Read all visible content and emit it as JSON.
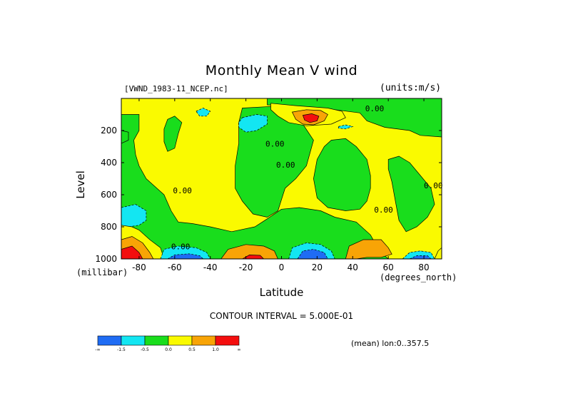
{
  "chart_data": {
    "type": "heatmap",
    "title": "Monthly Mean V wind",
    "file_label": "[VWND_1983-11_NCEP.nc]",
    "units_label": "(units:m/s)",
    "xlabel": "Latitude",
    "x_unit_label": "(degrees_north)",
    "ylabel": "Level",
    "y_unit_label": "(millibar)",
    "xlim": [
      -90,
      90
    ],
    "ylim": [
      1000,
      0
    ],
    "x_ticks": [
      "-80",
      "-60",
      "-40",
      "-20",
      "0",
      "20",
      "40",
      "60",
      "80"
    ],
    "x_tick_values": [
      -80,
      -60,
      -40,
      -20,
      0,
      20,
      40,
      60,
      80
    ],
    "y_ticks": [
      "200",
      "400",
      "600",
      "800",
      "1000"
    ],
    "y_tick_values": [
      200,
      400,
      600,
      800,
      1000
    ],
    "contour_interval_label": "CONTOUR INTERVAL = 5.000E-01",
    "mean_label": "(mean) lon:0..357.5",
    "contour_labels": [
      {
        "text": "0.00",
        "x": -62,
        "y": 940
      },
      {
        "text": "0.00",
        "x": -9,
        "y": 300
      },
      {
        "text": "0.00",
        "x": -3,
        "y": 430
      },
      {
        "text": "0.00",
        "x": -61,
        "y": 590
      },
      {
        "text": "0.00",
        "x": 52,
        "y": 710
      },
      {
        "text": "0.00",
        "x": 47,
        "y": 80
      },
      {
        "text": "0.00",
        "x": 80,
        "y": 560
      }
    ],
    "colorbar": {
      "colors": [
        "#1f6cf4",
        "#13e6f2",
        "#19dd1c",
        "#fafa00",
        "#f8a406",
        "#f40e0e"
      ],
      "labels": [
        "-∞",
        "-1.5",
        "-0.5",
        "0.0",
        "0.5",
        "1.0",
        "∞"
      ]
    },
    "regions": [
      {
        "level": 2,
        "points": [
          [
            -90,
            0
          ],
          [
            90,
            0
          ],
          [
            90,
            1000
          ],
          [
            -90,
            1000
          ]
        ]
      },
      {
        "level": 3,
        "points": [
          [
            -90,
            0
          ],
          [
            -8,
            0
          ],
          [
            -8,
            40
          ],
          [
            10,
            55
          ],
          [
            30,
            70
          ],
          [
            44,
            90
          ],
          [
            48,
            140
          ],
          [
            58,
            180
          ],
          [
            72,
            200
          ],
          [
            78,
            230
          ],
          [
            90,
            240
          ],
          [
            90,
            1000
          ],
          [
            60,
            1000
          ],
          [
            55,
            950
          ],
          [
            50,
            850
          ],
          [
            42,
            770
          ],
          [
            30,
            740
          ],
          [
            22,
            700
          ],
          [
            10,
            680
          ],
          [
            0,
            690
          ],
          [
            -8,
            750
          ],
          [
            -15,
            800
          ],
          [
            -28,
            830
          ],
          [
            -40,
            800
          ],
          [
            -50,
            780
          ],
          [
            -58,
            770
          ],
          [
            -62,
            700
          ],
          [
            -66,
            600
          ],
          [
            -72,
            540
          ],
          [
            -76,
            500
          ],
          [
            -80,
            420
          ],
          [
            -82,
            350
          ],
          [
            -83,
            260
          ],
          [
            -80,
            200
          ],
          [
            -80,
            100
          ],
          [
            -90,
            100
          ]
        ]
      },
      {
        "level": 2,
        "points": [
          [
            -22,
            60
          ],
          [
            -6,
            50
          ],
          [
            6,
            90
          ],
          [
            12,
            160
          ],
          [
            18,
            260
          ],
          [
            14,
            420
          ],
          [
            8,
            500
          ],
          [
            2,
            560
          ],
          [
            -2,
            700
          ],
          [
            -8,
            740
          ],
          [
            -16,
            720
          ],
          [
            -22,
            640
          ],
          [
            -26,
            560
          ],
          [
            -26,
            420
          ],
          [
            -24,
            280
          ],
          [
            -24,
            150
          ]
        ]
      },
      {
        "level": 2,
        "points": [
          [
            -64,
            130
          ],
          [
            -60,
            110
          ],
          [
            -56,
            150
          ],
          [
            -58,
            220
          ],
          [
            -60,
            310
          ],
          [
            -64,
            330
          ],
          [
            -66,
            270
          ],
          [
            -66,
            190
          ]
        ]
      },
      {
        "level": 2,
        "points": [
          [
            -90,
            200
          ],
          [
            -86,
            210
          ],
          [
            -86,
            260
          ],
          [
            -90,
            280
          ]
        ]
      },
      {
        "level": 2,
        "points": [
          [
            28,
            260
          ],
          [
            36,
            250
          ],
          [
            42,
            300
          ],
          [
            48,
            380
          ],
          [
            50,
            480
          ],
          [
            50,
            560
          ],
          [
            48,
            640
          ],
          [
            44,
            690
          ],
          [
            36,
            700
          ],
          [
            26,
            680
          ],
          [
            20,
            620
          ],
          [
            18,
            500
          ],
          [
            20,
            380
          ],
          [
            24,
            300
          ]
        ]
      },
      {
        "level": 2,
        "points": [
          [
            60,
            380
          ],
          [
            66,
            360
          ],
          [
            72,
            400
          ],
          [
            78,
            480
          ],
          [
            84,
            560
          ],
          [
            86,
            660
          ],
          [
            82,
            740
          ],
          [
            76,
            800
          ],
          [
            70,
            830
          ],
          [
            66,
            760
          ],
          [
            64,
            640
          ],
          [
            62,
            520
          ],
          [
            60,
            440
          ]
        ]
      },
      {
        "level": 3,
        "points": [
          [
            -6,
            30
          ],
          [
            8,
            45
          ],
          [
            26,
            60
          ],
          [
            34,
            80
          ],
          [
            36,
            120
          ],
          [
            28,
            160
          ],
          [
            14,
            170
          ],
          [
            4,
            150
          ],
          [
            -2,
            110
          ],
          [
            -6,
            70
          ]
        ]
      },
      {
        "level": 4,
        "points": [
          [
            6,
            85
          ],
          [
            14,
            70
          ],
          [
            22,
            75
          ],
          [
            26,
            100
          ],
          [
            24,
            140
          ],
          [
            18,
            165
          ],
          [
            12,
            160
          ],
          [
            8,
            130
          ]
        ]
      },
      {
        "level": 5,
        "points": [
          [
            12,
            105
          ],
          [
            17,
            95
          ],
          [
            21,
            110
          ],
          [
            20,
            140
          ],
          [
            16,
            150
          ],
          [
            13,
            135
          ]
        ]
      },
      {
        "level": 1,
        "points": [
          [
            -48,
            80
          ],
          [
            -44,
            60
          ],
          [
            -40,
            80
          ],
          [
            -42,
            110
          ],
          [
            -46,
            110
          ]
        ]
      },
      {
        "level": 1,
        "points": [
          [
            -22,
            120
          ],
          [
            -14,
            100
          ],
          [
            -8,
            110
          ],
          [
            -8,
            160
          ],
          [
            -14,
            200
          ],
          [
            -20,
            210
          ],
          [
            -24,
            180
          ],
          [
            -24,
            150
          ]
        ]
      },
      {
        "level": 1,
        "points": [
          [
            32,
            175
          ],
          [
            36,
            165
          ],
          [
            40,
            175
          ],
          [
            36,
            190
          ],
          [
            32,
            185
          ]
        ]
      },
      {
        "level": 1,
        "points": [
          [
            -90,
            680
          ],
          [
            -82,
            660
          ],
          [
            -76,
            700
          ],
          [
            -76,
            760
          ],
          [
            -80,
            790
          ],
          [
            -86,
            800
          ],
          [
            -90,
            790
          ]
        ]
      },
      {
        "level": 3,
        "points": [
          [
            -90,
            790
          ],
          [
            -84,
            800
          ],
          [
            -80,
            820
          ],
          [
            -74,
            880
          ],
          [
            -68,
            930
          ],
          [
            -66,
            1000
          ],
          [
            -90,
            1000
          ]
        ]
      },
      {
        "level": 4,
        "points": [
          [
            -90,
            880
          ],
          [
            -84,
            860
          ],
          [
            -78,
            900
          ],
          [
            -74,
            960
          ],
          [
            -72,
            1000
          ],
          [
            -90,
            1000
          ]
        ]
      },
      {
        "level": 5,
        "points": [
          [
            -90,
            940
          ],
          [
            -84,
            920
          ],
          [
            -80,
            960
          ],
          [
            -78,
            1000
          ],
          [
            -90,
            1000
          ]
        ]
      },
      {
        "level": 1,
        "points": [
          [
            -68,
            1000
          ],
          [
            -66,
            940
          ],
          [
            -58,
            920
          ],
          [
            -48,
            930
          ],
          [
            -42,
            960
          ],
          [
            -40,
            1000
          ]
        ]
      },
      {
        "level": 0,
        "points": [
          [
            -64,
            1000
          ],
          [
            -60,
            975
          ],
          [
            -52,
            968
          ],
          [
            -46,
            980
          ],
          [
            -44,
            1000
          ]
        ]
      },
      {
        "level": 4,
        "points": [
          [
            -34,
            1000
          ],
          [
            -30,
            940
          ],
          [
            -20,
            910
          ],
          [
            -10,
            920
          ],
          [
            -4,
            950
          ],
          [
            -2,
            1000
          ]
        ]
      },
      {
        "level": 5,
        "points": [
          [
            -22,
            1000
          ],
          [
            -18,
            975
          ],
          [
            -12,
            978
          ],
          [
            -10,
            1000
          ]
        ]
      },
      {
        "level": 1,
        "points": [
          [
            4,
            1000
          ],
          [
            6,
            930
          ],
          [
            14,
            900
          ],
          [
            22,
            910
          ],
          [
            28,
            950
          ],
          [
            30,
            1000
          ]
        ]
      },
      {
        "level": 0,
        "points": [
          [
            9,
            1000
          ],
          [
            12,
            950
          ],
          [
            18,
            940
          ],
          [
            24,
            960
          ],
          [
            26,
            1000
          ]
        ]
      },
      {
        "level": 4,
        "points": [
          [
            36,
            1000
          ],
          [
            38,
            920
          ],
          [
            46,
            880
          ],
          [
            56,
            880
          ],
          [
            60,
            930
          ],
          [
            62,
            970
          ],
          [
            56,
            990
          ],
          [
            48,
            990
          ],
          [
            42,
            1000
          ]
        ]
      },
      {
        "level": 1,
        "points": [
          [
            68,
            1000
          ],
          [
            72,
            960
          ],
          [
            78,
            950
          ],
          [
            84,
            960
          ],
          [
            86,
            1000
          ]
        ]
      },
      {
        "level": 0,
        "points": [
          [
            72,
            1000
          ],
          [
            76,
            980
          ],
          [
            82,
            980
          ],
          [
            84,
            1000
          ]
        ]
      },
      {
        "level": 3,
        "points": [
          [
            86,
            1000
          ],
          [
            88,
            950
          ],
          [
            90,
            930
          ],
          [
            90,
            1000
          ]
        ]
      }
    ]
  }
}
